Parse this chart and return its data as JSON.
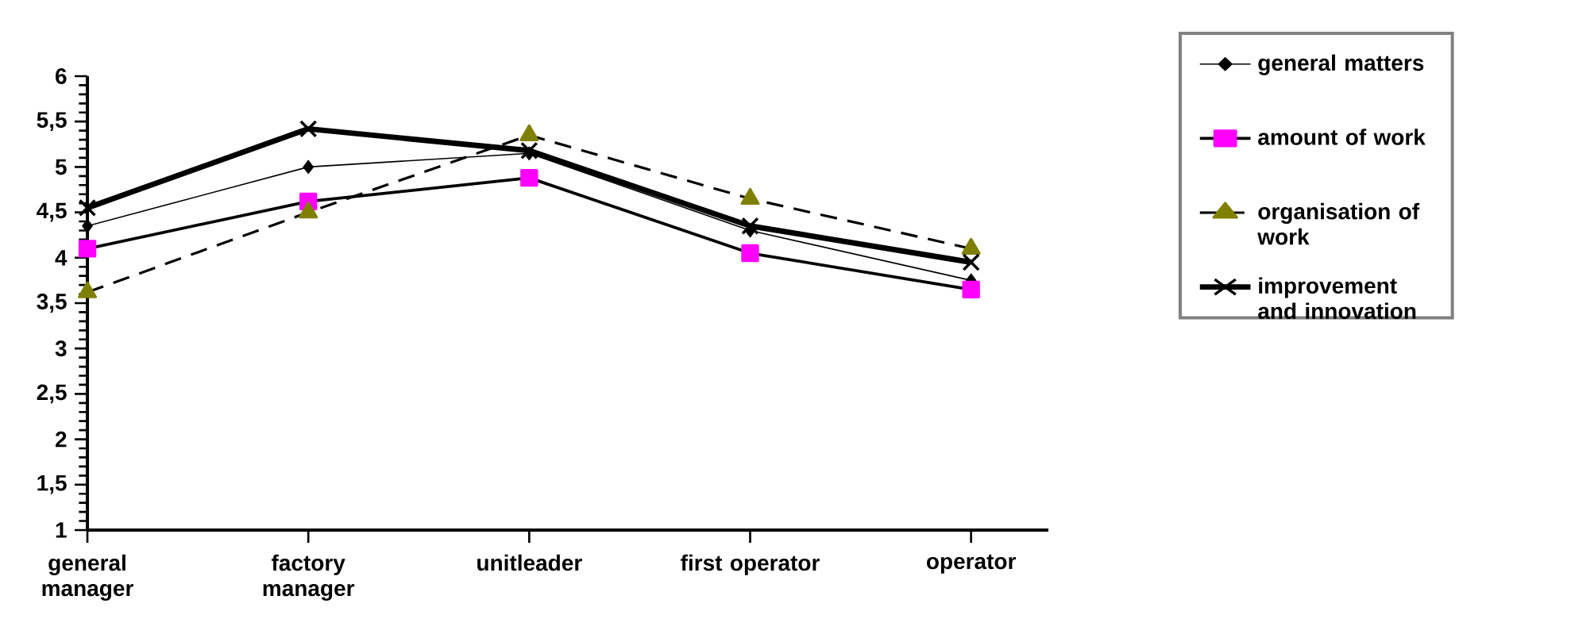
{
  "chart_data": {
    "type": "line",
    "categories": [
      "general manager",
      "factory manager",
      "unitleader",
      "first operator",
      "operator"
    ],
    "series": [
      {
        "name": "general matters",
        "color": "#000000",
        "marker": "diamond",
        "line_style": "solid",
        "values": [
          4.35,
          5.0,
          5.15,
          4.3,
          3.75
        ]
      },
      {
        "name": "amount of work",
        "color": "#ff00ff",
        "marker": "square",
        "line_style": "solid",
        "values": [
          4.1,
          4.62,
          4.88,
          4.05,
          3.65
        ]
      },
      {
        "name": "organisation of work",
        "color": "#808000",
        "marker": "triangle",
        "line_style": "dashed",
        "values": [
          3.62,
          4.5,
          5.35,
          4.65,
          4.1
        ]
      },
      {
        "name": "improvement and innovation",
        "color": "#000000",
        "marker": "cross",
        "line_style": "solid",
        "values": [
          4.55,
          5.42,
          5.18,
          4.35,
          3.95
        ]
      }
    ],
    "ylim": [
      1,
      6
    ],
    "yticks": [
      1,
      {
        "value": 1.5,
        "label": "1,5"
      },
      2,
      {
        "value": 2.5,
        "label": "2,5"
      },
      3,
      {
        "value": 3.5,
        "label": "3,5"
      },
      4,
      {
        "value": 4.5,
        "label": "4,5"
      },
      5,
      {
        "value": 5.5,
        "label": "5,5"
      },
      6
    ],
    "grid": false,
    "legend": "right"
  }
}
